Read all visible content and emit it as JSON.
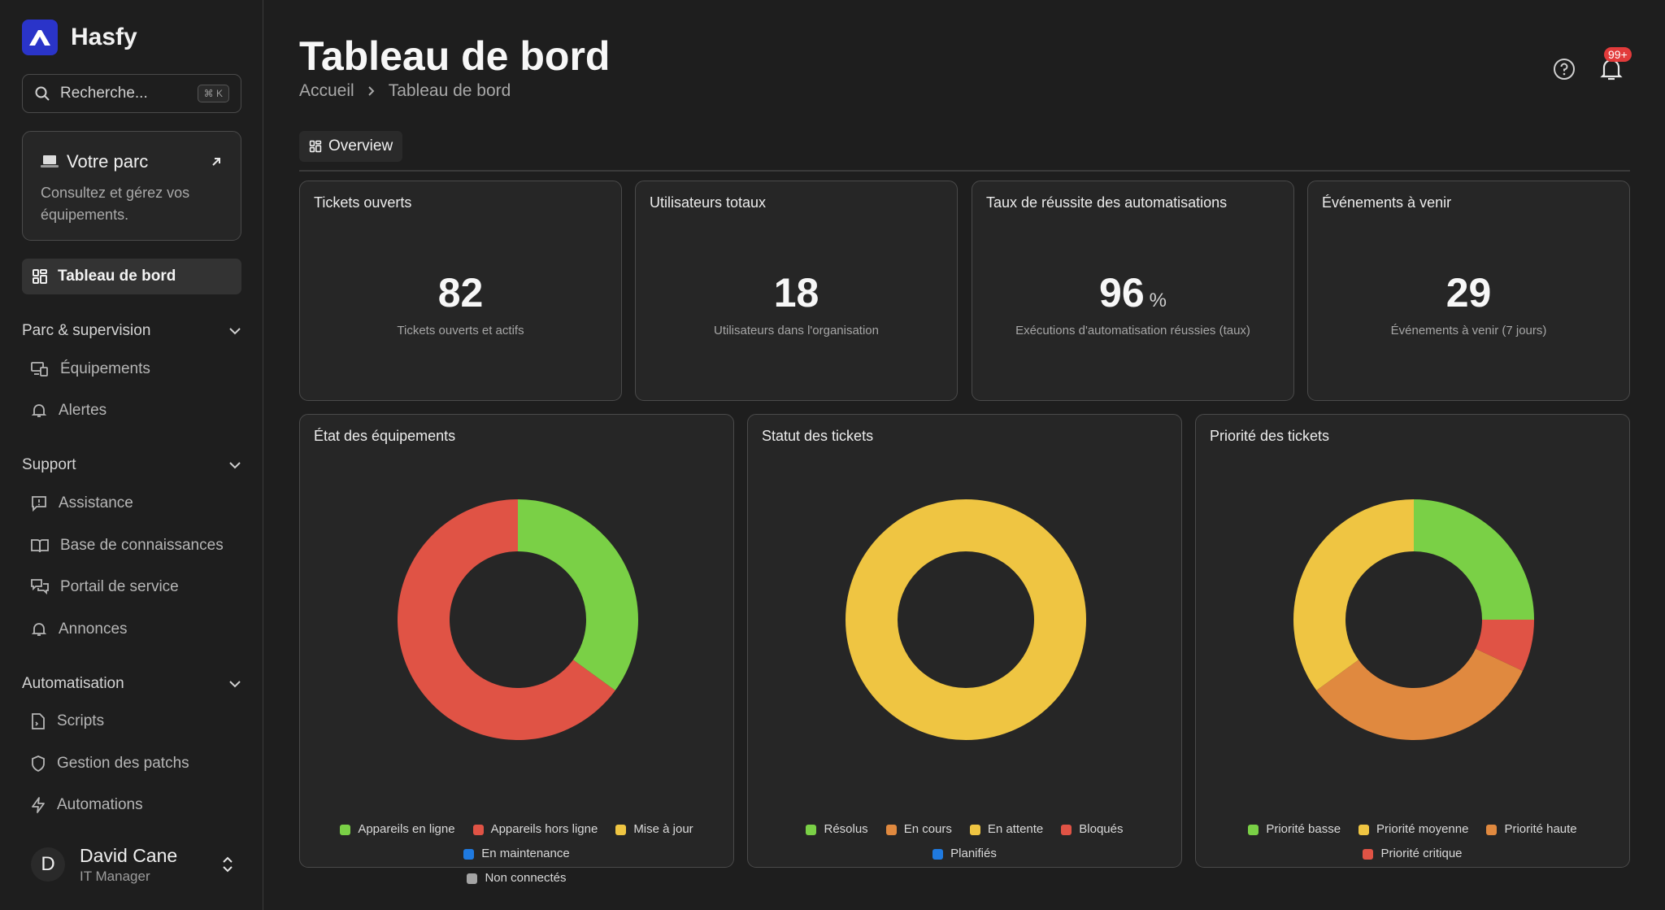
{
  "app": {
    "name": "Hasfy",
    "brand_color": "#2a34c9"
  },
  "search": {
    "placeholder": "Recherche...",
    "shortcut": "⌘ K"
  },
  "fleet_card": {
    "title": "Votre parc",
    "description": "Consultez et gérez vos équipements."
  },
  "sidebar": {
    "active_item": "Tableau de bord",
    "sections": [
      {
        "title": "Parc & supervision",
        "items": [
          "Équipements",
          "Alertes"
        ]
      },
      {
        "title": "Support",
        "items": [
          "Assistance",
          "Base de connaissances",
          "Portail de service",
          "Annonces"
        ]
      },
      {
        "title": "Automatisation",
        "items": [
          "Scripts",
          "Gestion des patchs",
          "Automations"
        ]
      }
    ]
  },
  "user": {
    "initial": "D",
    "name": "David Cane",
    "role": "IT Manager"
  },
  "header": {
    "title": "Tableau de bord",
    "breadcrumb": [
      "Accueil",
      "Tableau de bord"
    ],
    "notification_badge": "99+"
  },
  "tabs": [
    "Overview"
  ],
  "stats": [
    {
      "title": "Tickets ouverts",
      "value": "82",
      "unit": "",
      "description": "Tickets ouverts et actifs"
    },
    {
      "title": "Utilisateurs totaux",
      "value": "18",
      "unit": "",
      "description": "Utilisateurs dans l'organisation"
    },
    {
      "title": "Taux de réussite des automatisations",
      "value": "96",
      "unit": "%",
      "description": "Exécutions d'automatisation réussies (taux)"
    },
    {
      "title": "Événements à venir",
      "value": "29",
      "unit": "",
      "description": "Événements à venir (7 jours)"
    }
  ],
  "chart_data": [
    {
      "type": "pie",
      "title": "État des équipements",
      "categories": [
        "Appareils en ligne",
        "Appareils hors ligne",
        "Mise à jour",
        "En maintenance",
        "Non connectés"
      ],
      "values": [
        35,
        65,
        0,
        0,
        0
      ],
      "colors": [
        "#7ad046",
        "#e05345",
        "#efc542",
        "#1f7ae0",
        "#a4a4a4"
      ],
      "donut": true
    },
    {
      "type": "pie",
      "title": "Statut des tickets",
      "categories": [
        "Résolus",
        "En cours",
        "En attente",
        "Bloqués",
        "Planifiés"
      ],
      "values": [
        0,
        0,
        100,
        0,
        0
      ],
      "colors": [
        "#7ad046",
        "#e0893f",
        "#efc542",
        "#e05345",
        "#1f7ae0"
      ],
      "donut": true
    },
    {
      "type": "pie",
      "title": "Priorité des tickets",
      "categories": [
        "Priorité basse",
        "Priorité moyenne",
        "Priorité haute",
        "Priorité critique"
      ],
      "values": [
        25,
        35,
        33,
        7
      ],
      "colors": [
        "#7ad046",
        "#efc542",
        "#e0893f",
        "#e05345"
      ],
      "plot_order": [
        0,
        3,
        2,
        1
      ],
      "donut": true
    }
  ]
}
